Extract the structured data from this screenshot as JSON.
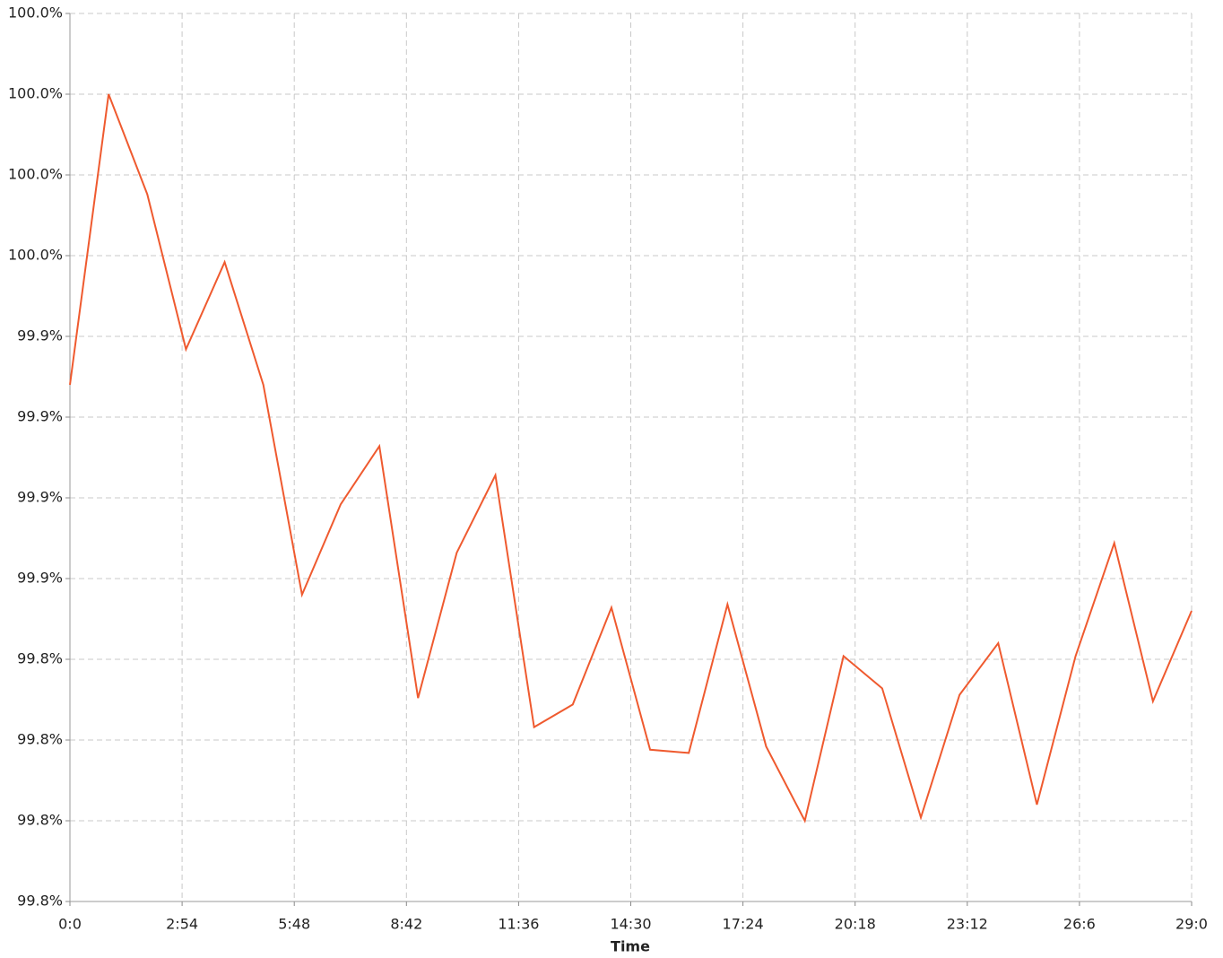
{
  "chart_data": {
    "type": "line",
    "xlabel": "Time",
    "x": [
      0,
      60,
      120,
      180,
      240,
      300,
      360,
      420,
      480,
      540,
      600,
      660,
      720,
      780,
      840,
      900,
      960,
      1020,
      1080,
      1140,
      1200,
      1260,
      1320,
      1380,
      1440,
      1500,
      1560,
      1620,
      1680,
      1740
    ],
    "series": [
      {
        "color": "#ef5a2f",
        "values": [
          99.91,
          100.0,
          99.969,
          99.921,
          99.948,
          99.91,
          99.845,
          99.873,
          99.891,
          99.813,
          99.858,
          99.882,
          99.804,
          99.811,
          99.841,
          99.797,
          99.796,
          99.842,
          99.798,
          99.775,
          99.826,
          99.816,
          99.776,
          99.814,
          99.83,
          99.78,
          99.826,
          99.861,
          99.812,
          99.84
        ]
      }
    ],
    "xlim": [
      0,
      1740
    ],
    "xticks": [
      {
        "value": 0,
        "label": "0:0"
      },
      {
        "value": 174,
        "label": "2:54"
      },
      {
        "value": 348,
        "label": "5:48"
      },
      {
        "value": 522,
        "label": "8:42"
      },
      {
        "value": 696,
        "label": "11:36"
      },
      {
        "value": 870,
        "label": "14:30"
      },
      {
        "value": 1044,
        "label": "17:24"
      },
      {
        "value": 1218,
        "label": "20:18"
      },
      {
        "value": 1392,
        "label": "23:12"
      },
      {
        "value": 1566,
        "label": "26:6"
      },
      {
        "value": 1740,
        "label": "29:0"
      }
    ],
    "ylim": [
      99.75,
      100.025
    ],
    "yticks": [
      {
        "value": 99.75,
        "label": "99.8%"
      },
      {
        "value": 99.775,
        "label": "99.8%"
      },
      {
        "value": 99.8,
        "label": "99.8%"
      },
      {
        "value": 99.825,
        "label": "99.8%"
      },
      {
        "value": 99.85,
        "label": "99.9%"
      },
      {
        "value": 99.875,
        "label": "99.9%"
      },
      {
        "value": 99.9,
        "label": "99.9%"
      },
      {
        "value": 99.925,
        "label": "99.9%"
      },
      {
        "value": 99.95,
        "label": "100.0%"
      },
      {
        "value": 99.975,
        "label": "100.0%"
      },
      {
        "value": 100,
        "label": "100.0%"
      },
      {
        "value": 100.025,
        "label": "100.0%"
      }
    ],
    "grid": true
  }
}
